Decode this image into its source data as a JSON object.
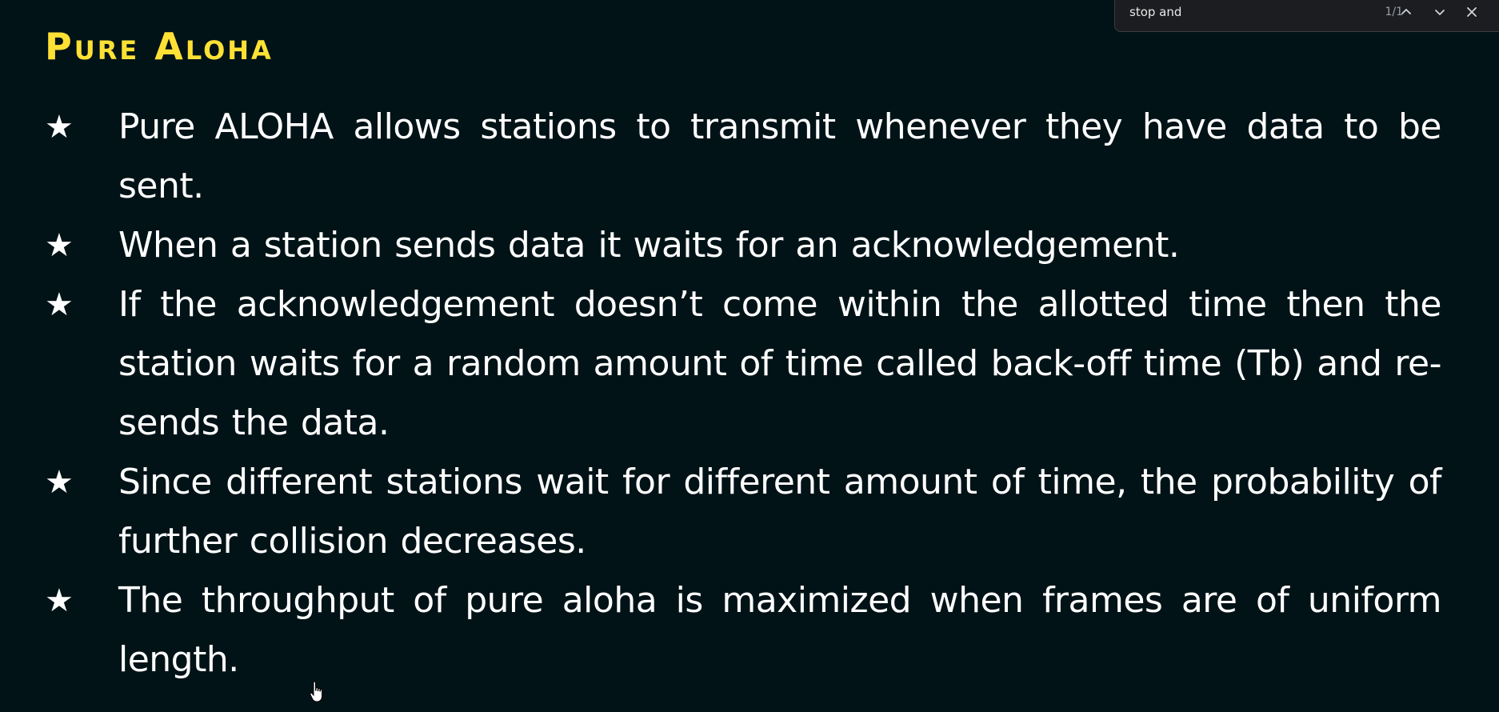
{
  "slide": {
    "title": "Pure aloha",
    "bullet_icon": "star-icon",
    "bullets": [
      "Pure ALOHA allows stations to transmit whenever they have data to be sent.",
      "When a station sends data it waits for an acknowledgement.",
      "If the acknowledgement doesn’t come within the allotted time then the station waits for a random amount of time called back-off time (Tb) and re-sends the data.",
      "Since different stations wait for different amount of time, the probability of further collision decreases.",
      "The throughput of pure aloha is maximized when frames are of uniform length."
    ]
  },
  "find_bar": {
    "query": "stop and",
    "match_count": "1/1",
    "prev_icon": "chevron-up-icon",
    "next_icon": "chevron-down-icon",
    "close_icon": "close-icon"
  },
  "colors": {
    "background": "#021317",
    "title": "#ffe135",
    "text": "#ffffff",
    "find_bar_bg": "#1b1d20"
  }
}
